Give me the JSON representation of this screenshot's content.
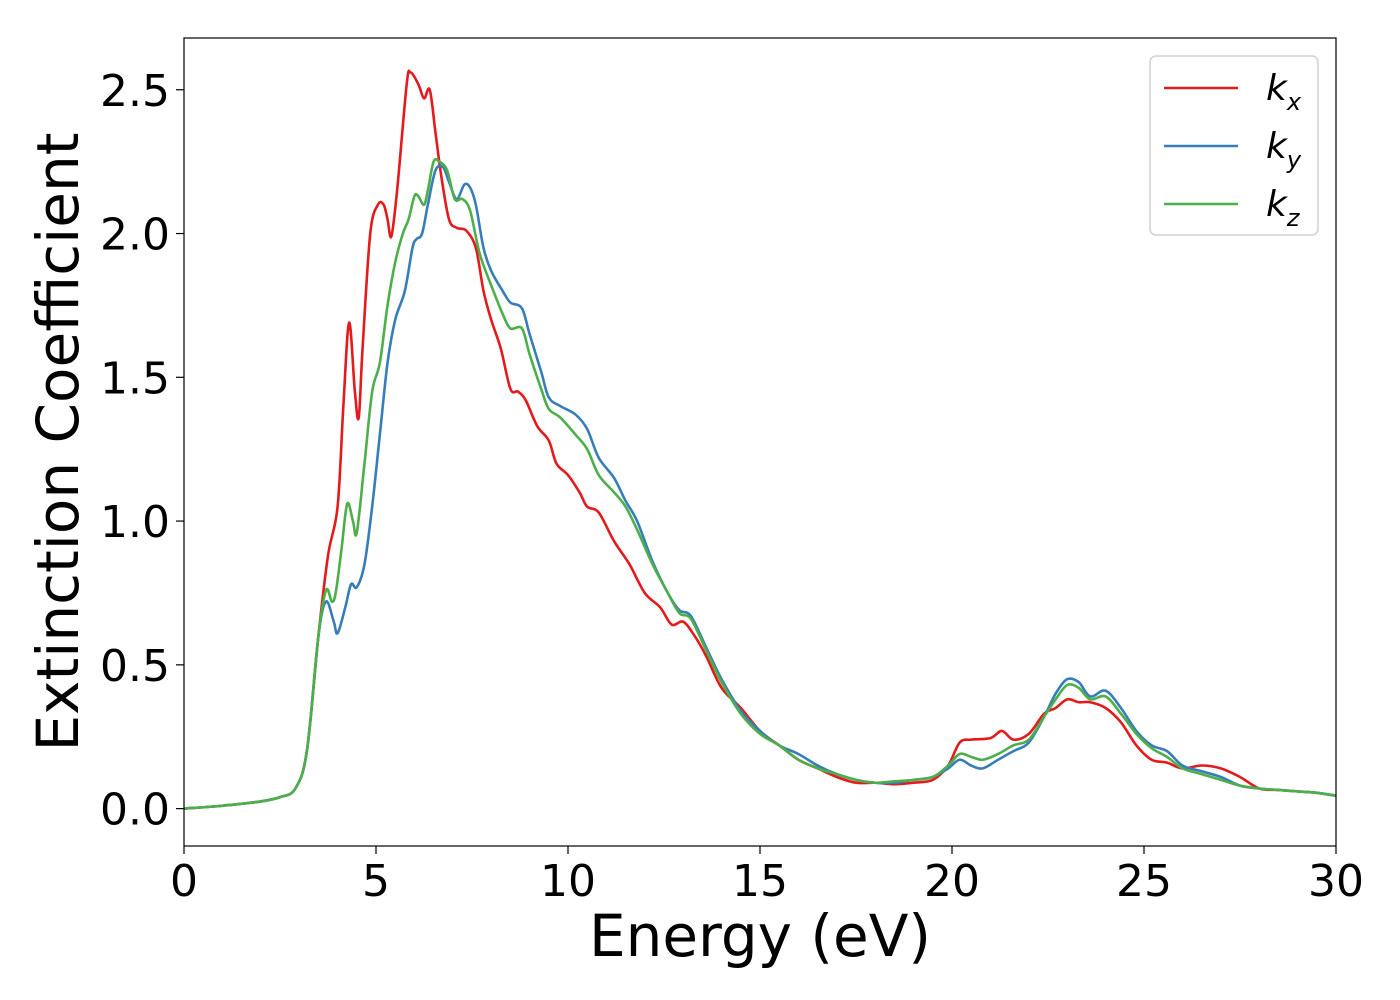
{
  "chart_data": {
    "type": "line",
    "title": "",
    "xlabel": "Energy (eV)",
    "ylabel": "Extinction Coefficient",
    "xlim": [
      0,
      30
    ],
    "ylim": [
      -0.13,
      2.68
    ],
    "xticks": [
      0,
      5,
      10,
      15,
      20,
      25,
      30
    ],
    "xtick_labels": [
      "0",
      "5",
      "10",
      "15",
      "20",
      "25",
      "30"
    ],
    "yticks": [
      0.0,
      0.5,
      1.0,
      1.5,
      2.0,
      2.5
    ],
    "ytick_labels": [
      "0.0",
      "0.5",
      "1.0",
      "1.5",
      "2.0",
      "2.5"
    ],
    "grid": false,
    "legend_position": "top-right",
    "series": [
      {
        "name": "k",
        "subscript": "x",
        "color": "#e41a1c",
        "points": [
          [
            0,
            0
          ],
          [
            1,
            0.01
          ],
          [
            2,
            0.025
          ],
          [
            2.5,
            0.04
          ],
          [
            2.9,
            0.07
          ],
          [
            3.2,
            0.2
          ],
          [
            3.5,
            0.6
          ],
          [
            3.75,
            0.88
          ],
          [
            4.0,
            1.05
          ],
          [
            4.15,
            1.4
          ],
          [
            4.3,
            1.69
          ],
          [
            4.45,
            1.45
          ],
          [
            4.55,
            1.36
          ],
          [
            4.65,
            1.6
          ],
          [
            4.85,
            2.0
          ],
          [
            5.05,
            2.1
          ],
          [
            5.2,
            2.1
          ],
          [
            5.3,
            2.05
          ],
          [
            5.4,
            1.99
          ],
          [
            5.55,
            2.15
          ],
          [
            5.8,
            2.52
          ],
          [
            5.9,
            2.56
          ],
          [
            6.1,
            2.52
          ],
          [
            6.25,
            2.47
          ],
          [
            6.4,
            2.5
          ],
          [
            6.55,
            2.35
          ],
          [
            6.7,
            2.2
          ],
          [
            6.9,
            2.05
          ],
          [
            7.1,
            2.02
          ],
          [
            7.35,
            2.01
          ],
          [
            7.6,
            1.95
          ],
          [
            7.8,
            1.8
          ],
          [
            8.0,
            1.7
          ],
          [
            8.25,
            1.6
          ],
          [
            8.5,
            1.46
          ],
          [
            8.7,
            1.45
          ],
          [
            8.9,
            1.42
          ],
          [
            9.2,
            1.33
          ],
          [
            9.5,
            1.28
          ],
          [
            9.7,
            1.2
          ],
          [
            10.0,
            1.16
          ],
          [
            10.3,
            1.1
          ],
          [
            10.5,
            1.05
          ],
          [
            10.8,
            1.03
          ],
          [
            11.2,
            0.93
          ],
          [
            11.6,
            0.85
          ],
          [
            12.0,
            0.75
          ],
          [
            12.4,
            0.7
          ],
          [
            12.7,
            0.64
          ],
          [
            13.0,
            0.65
          ],
          [
            13.3,
            0.6
          ],
          [
            13.6,
            0.53
          ],
          [
            14.0,
            0.42
          ],
          [
            14.5,
            0.35
          ],
          [
            15.0,
            0.27
          ],
          [
            15.5,
            0.22
          ],
          [
            16.0,
            0.17
          ],
          [
            16.5,
            0.14
          ],
          [
            17.0,
            0.11
          ],
          [
            17.5,
            0.09
          ],
          [
            18.0,
            0.09
          ],
          [
            18.5,
            0.085
          ],
          [
            19.0,
            0.09
          ],
          [
            19.5,
            0.1
          ],
          [
            19.9,
            0.15
          ],
          [
            20.2,
            0.23
          ],
          [
            20.5,
            0.24
          ],
          [
            21.0,
            0.245
          ],
          [
            21.3,
            0.27
          ],
          [
            21.6,
            0.24
          ],
          [
            22.0,
            0.26
          ],
          [
            22.4,
            0.33
          ],
          [
            22.7,
            0.35
          ],
          [
            23.0,
            0.38
          ],
          [
            23.3,
            0.37
          ],
          [
            23.6,
            0.37
          ],
          [
            24.0,
            0.35
          ],
          [
            24.4,
            0.3
          ],
          [
            24.8,
            0.22
          ],
          [
            25.2,
            0.17
          ],
          [
            25.6,
            0.16
          ],
          [
            26.0,
            0.14
          ],
          [
            26.5,
            0.15
          ],
          [
            27.0,
            0.14
          ],
          [
            27.5,
            0.11
          ],
          [
            28.0,
            0.07
          ],
          [
            28.5,
            0.065
          ],
          [
            29.0,
            0.06
          ],
          [
            29.5,
            0.055
          ],
          [
            30.0,
            0.045
          ]
        ]
      },
      {
        "name": "k",
        "subscript": "y",
        "color": "#377eb8",
        "points": [
          [
            0,
            0
          ],
          [
            1,
            0.01
          ],
          [
            2,
            0.025
          ],
          [
            2.5,
            0.04
          ],
          [
            2.9,
            0.07
          ],
          [
            3.2,
            0.2
          ],
          [
            3.5,
            0.6
          ],
          [
            3.7,
            0.72
          ],
          [
            3.9,
            0.65
          ],
          [
            4.0,
            0.61
          ],
          [
            4.2,
            0.7
          ],
          [
            4.35,
            0.78
          ],
          [
            4.5,
            0.77
          ],
          [
            4.7,
            0.85
          ],
          [
            4.9,
            1.05
          ],
          [
            5.1,
            1.3
          ],
          [
            5.3,
            1.55
          ],
          [
            5.5,
            1.7
          ],
          [
            5.75,
            1.8
          ],
          [
            5.95,
            1.95
          ],
          [
            6.05,
            1.98
          ],
          [
            6.2,
            2.0
          ],
          [
            6.35,
            2.1
          ],
          [
            6.55,
            2.22
          ],
          [
            6.75,
            2.23
          ],
          [
            6.9,
            2.18
          ],
          [
            7.1,
            2.12
          ],
          [
            7.3,
            2.17
          ],
          [
            7.45,
            2.16
          ],
          [
            7.6,
            2.1
          ],
          [
            7.8,
            1.95
          ],
          [
            8.0,
            1.87
          ],
          [
            8.3,
            1.8
          ],
          [
            8.5,
            1.76
          ],
          [
            8.8,
            1.74
          ],
          [
            9.0,
            1.65
          ],
          [
            9.3,
            1.52
          ],
          [
            9.5,
            1.43
          ],
          [
            9.8,
            1.4
          ],
          [
            10.2,
            1.37
          ],
          [
            10.5,
            1.32
          ],
          [
            10.8,
            1.22
          ],
          [
            11.2,
            1.15
          ],
          [
            11.5,
            1.07
          ],
          [
            11.8,
            1.0
          ],
          [
            12.2,
            0.86
          ],
          [
            12.6,
            0.75
          ],
          [
            12.9,
            0.69
          ],
          [
            13.2,
            0.67
          ],
          [
            13.6,
            0.56
          ],
          [
            14.0,
            0.45
          ],
          [
            14.5,
            0.34
          ],
          [
            15.0,
            0.27
          ],
          [
            15.5,
            0.22
          ],
          [
            16.0,
            0.19
          ],
          [
            16.5,
            0.15
          ],
          [
            17.0,
            0.12
          ],
          [
            17.5,
            0.1
          ],
          [
            18.0,
            0.09
          ],
          [
            18.5,
            0.09
          ],
          [
            19.0,
            0.1
          ],
          [
            19.5,
            0.11
          ],
          [
            19.9,
            0.14
          ],
          [
            20.2,
            0.17
          ],
          [
            20.5,
            0.15
          ],
          [
            20.8,
            0.14
          ],
          [
            21.2,
            0.17
          ],
          [
            21.6,
            0.2
          ],
          [
            22.0,
            0.23
          ],
          [
            22.4,
            0.32
          ],
          [
            22.7,
            0.4
          ],
          [
            23.0,
            0.45
          ],
          [
            23.3,
            0.44
          ],
          [
            23.6,
            0.39
          ],
          [
            24.0,
            0.41
          ],
          [
            24.4,
            0.35
          ],
          [
            24.8,
            0.27
          ],
          [
            25.2,
            0.22
          ],
          [
            25.6,
            0.2
          ],
          [
            26.0,
            0.15
          ],
          [
            26.5,
            0.13
          ],
          [
            27.0,
            0.11
          ],
          [
            27.5,
            0.08
          ],
          [
            28.0,
            0.07
          ],
          [
            28.5,
            0.065
          ],
          [
            29.0,
            0.06
          ],
          [
            29.5,
            0.055
          ],
          [
            30.0,
            0.045
          ]
        ]
      },
      {
        "name": "k",
        "subscript": "z",
        "color": "#4daf4a",
        "points": [
          [
            0,
            0
          ],
          [
            1,
            0.01
          ],
          [
            2,
            0.025
          ],
          [
            2.5,
            0.04
          ],
          [
            2.9,
            0.07
          ],
          [
            3.2,
            0.2
          ],
          [
            3.5,
            0.6
          ],
          [
            3.7,
            0.76
          ],
          [
            3.85,
            0.72
          ],
          [
            3.95,
            0.75
          ],
          [
            4.1,
            0.9
          ],
          [
            4.25,
            1.06
          ],
          [
            4.4,
            1.0
          ],
          [
            4.5,
            0.96
          ],
          [
            4.7,
            1.2
          ],
          [
            4.9,
            1.45
          ],
          [
            5.1,
            1.55
          ],
          [
            5.3,
            1.75
          ],
          [
            5.5,
            1.9
          ],
          [
            5.7,
            2.0
          ],
          [
            5.85,
            2.05
          ],
          [
            6.0,
            2.13
          ],
          [
            6.1,
            2.13
          ],
          [
            6.25,
            2.1
          ],
          [
            6.35,
            2.15
          ],
          [
            6.5,
            2.25
          ],
          [
            6.65,
            2.25
          ],
          [
            6.85,
            2.22
          ],
          [
            7.05,
            2.12
          ],
          [
            7.25,
            2.12
          ],
          [
            7.45,
            2.08
          ],
          [
            7.7,
            1.93
          ],
          [
            8.0,
            1.82
          ],
          [
            8.3,
            1.72
          ],
          [
            8.5,
            1.67
          ],
          [
            8.8,
            1.67
          ],
          [
            9.0,
            1.58
          ],
          [
            9.3,
            1.46
          ],
          [
            9.5,
            1.39
          ],
          [
            9.8,
            1.36
          ],
          [
            10.2,
            1.3
          ],
          [
            10.5,
            1.25
          ],
          [
            10.8,
            1.16
          ],
          [
            11.2,
            1.1
          ],
          [
            11.5,
            1.05
          ],
          [
            11.8,
            0.97
          ],
          [
            12.2,
            0.85
          ],
          [
            12.6,
            0.75
          ],
          [
            12.9,
            0.68
          ],
          [
            13.2,
            0.66
          ],
          [
            13.6,
            0.55
          ],
          [
            14.0,
            0.44
          ],
          [
            14.5,
            0.33
          ],
          [
            15.0,
            0.26
          ],
          [
            15.5,
            0.22
          ],
          [
            16.0,
            0.17
          ],
          [
            16.5,
            0.14
          ],
          [
            17.0,
            0.12
          ],
          [
            17.5,
            0.1
          ],
          [
            18.0,
            0.09
          ],
          [
            18.5,
            0.095
          ],
          [
            19.0,
            0.1
          ],
          [
            19.5,
            0.11
          ],
          [
            19.9,
            0.15
          ],
          [
            20.2,
            0.19
          ],
          [
            20.5,
            0.18
          ],
          [
            20.8,
            0.17
          ],
          [
            21.2,
            0.19
          ],
          [
            21.6,
            0.22
          ],
          [
            22.0,
            0.24
          ],
          [
            22.4,
            0.32
          ],
          [
            22.7,
            0.38
          ],
          [
            23.0,
            0.43
          ],
          [
            23.3,
            0.42
          ],
          [
            23.6,
            0.38
          ],
          [
            24.0,
            0.39
          ],
          [
            24.4,
            0.33
          ],
          [
            24.8,
            0.26
          ],
          [
            25.2,
            0.21
          ],
          [
            25.6,
            0.18
          ],
          [
            26.0,
            0.14
          ],
          [
            26.5,
            0.12
          ],
          [
            27.0,
            0.1
          ],
          [
            27.5,
            0.08
          ],
          [
            28.0,
            0.07
          ],
          [
            28.5,
            0.065
          ],
          [
            29.0,
            0.06
          ],
          [
            29.5,
            0.055
          ],
          [
            30.0,
            0.045
          ]
        ]
      }
    ]
  }
}
